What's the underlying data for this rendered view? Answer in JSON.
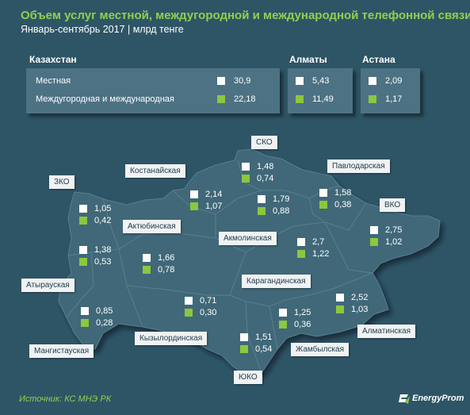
{
  "title": "Объем услуг местной, междугородной и международной телефонной связи.",
  "subtitle": "Январь-сентябрь  2017 | млрд тенге",
  "summary": {
    "kazakhstan": {
      "header": "Казахстан",
      "local_label": "Местная",
      "longdistance_label": "Междугородная и международная",
      "local": "30,9",
      "longdistance": "22,18"
    },
    "almaty": {
      "header": "Алматы",
      "local": "5,43",
      "longdistance": "11,49"
    },
    "astana": {
      "header": "Астана",
      "local": "2,09",
      "longdistance": "1,17"
    }
  },
  "regions": {
    "zko": {
      "name": "ЗКО",
      "local": "1,05",
      "longdistance": "0,42"
    },
    "atyrau": {
      "name": "Атырауская",
      "local": "1,38",
      "longdistance": "0,53"
    },
    "mangistau": {
      "name": "Мангистауская",
      "local": "0,85",
      "longdistance": "0,28"
    },
    "aktobe": {
      "name": "Актюбинская",
      "local": "1,66",
      "longdistance": "0,78"
    },
    "kostanay": {
      "name": "Костанайская",
      "local": "2,14",
      "longdistance": "1,07"
    },
    "sko": {
      "name": "СКО",
      "local": "1,48",
      "longdistance": "0,74"
    },
    "akmola": {
      "name": "Акмолинская",
      "local": "1,79",
      "longdistance": "0,88"
    },
    "pavlodar": {
      "name": "Павлодарская",
      "local": "1,58",
      "longdistance": "0,38"
    },
    "vko": {
      "name": "ВКО",
      "local": "2,75",
      "longdistance": "1,02"
    },
    "karaganda": {
      "name": "Карагандинская",
      "local": "2,7",
      "longdistance": "1,22"
    },
    "kyzylorda": {
      "name": "Кызылординская",
      "local": "0,71",
      "longdistance": "0,30"
    },
    "uko": {
      "name": "ЮКО",
      "local": "1,51",
      "longdistance": "0,54"
    },
    "zhambyl": {
      "name": "Жамбылская",
      "local": "1,25",
      "longdistance": "0,36"
    },
    "almatinskaya": {
      "name": "Алматинская",
      "local": "2,52",
      "longdistance": "1,03"
    }
  },
  "colors": {
    "local": "#ffffff",
    "longdistance": "#8dc63f",
    "title": "#8fd14f",
    "map_fill": "#406878",
    "background": "#2e5566"
  },
  "source": "Источник: КС МНЭ РК",
  "logo": {
    "text": "EnergyProm",
    "icon": "energyprom-logo-icon"
  }
}
